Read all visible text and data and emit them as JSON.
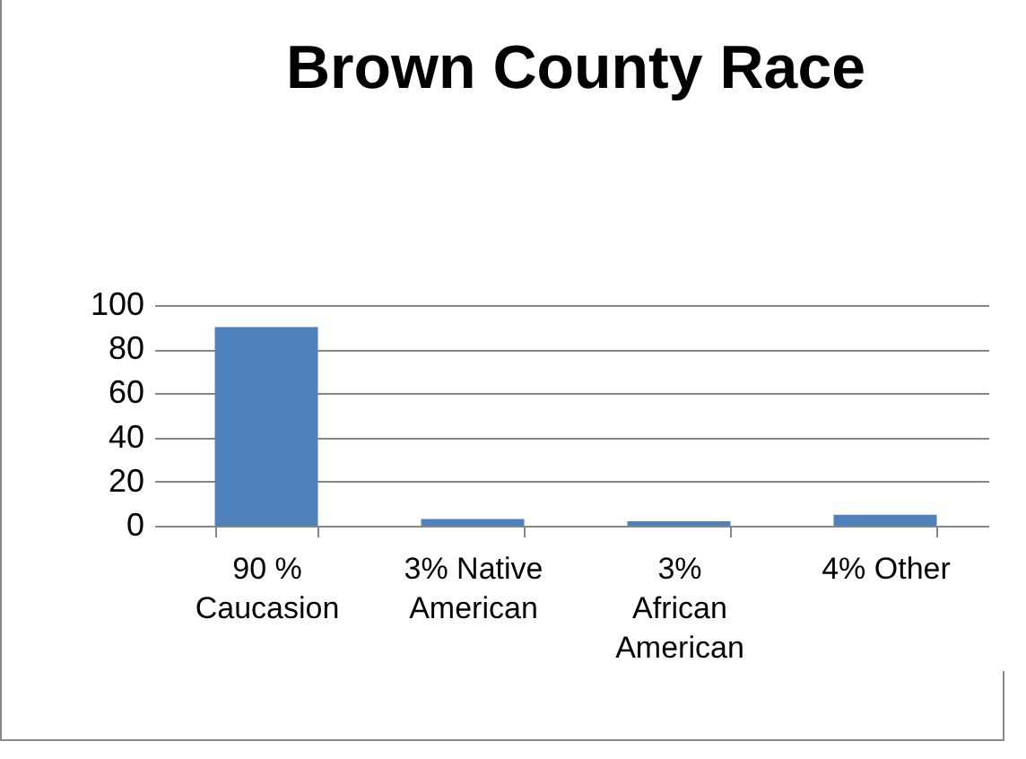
{
  "chart_data": {
    "type": "bar",
    "title": "Brown County Race",
    "categories": [
      "90 % Caucasion",
      "3% Native American",
      "3% African American",
      "4% Other"
    ],
    "values": [
      90,
      3,
      2,
      5
    ],
    "color": "#4f81bd",
    "ylim": [
      0,
      100
    ],
    "yticks": [
      0,
      20,
      40,
      60,
      80,
      100
    ],
    "grid": "y"
  }
}
